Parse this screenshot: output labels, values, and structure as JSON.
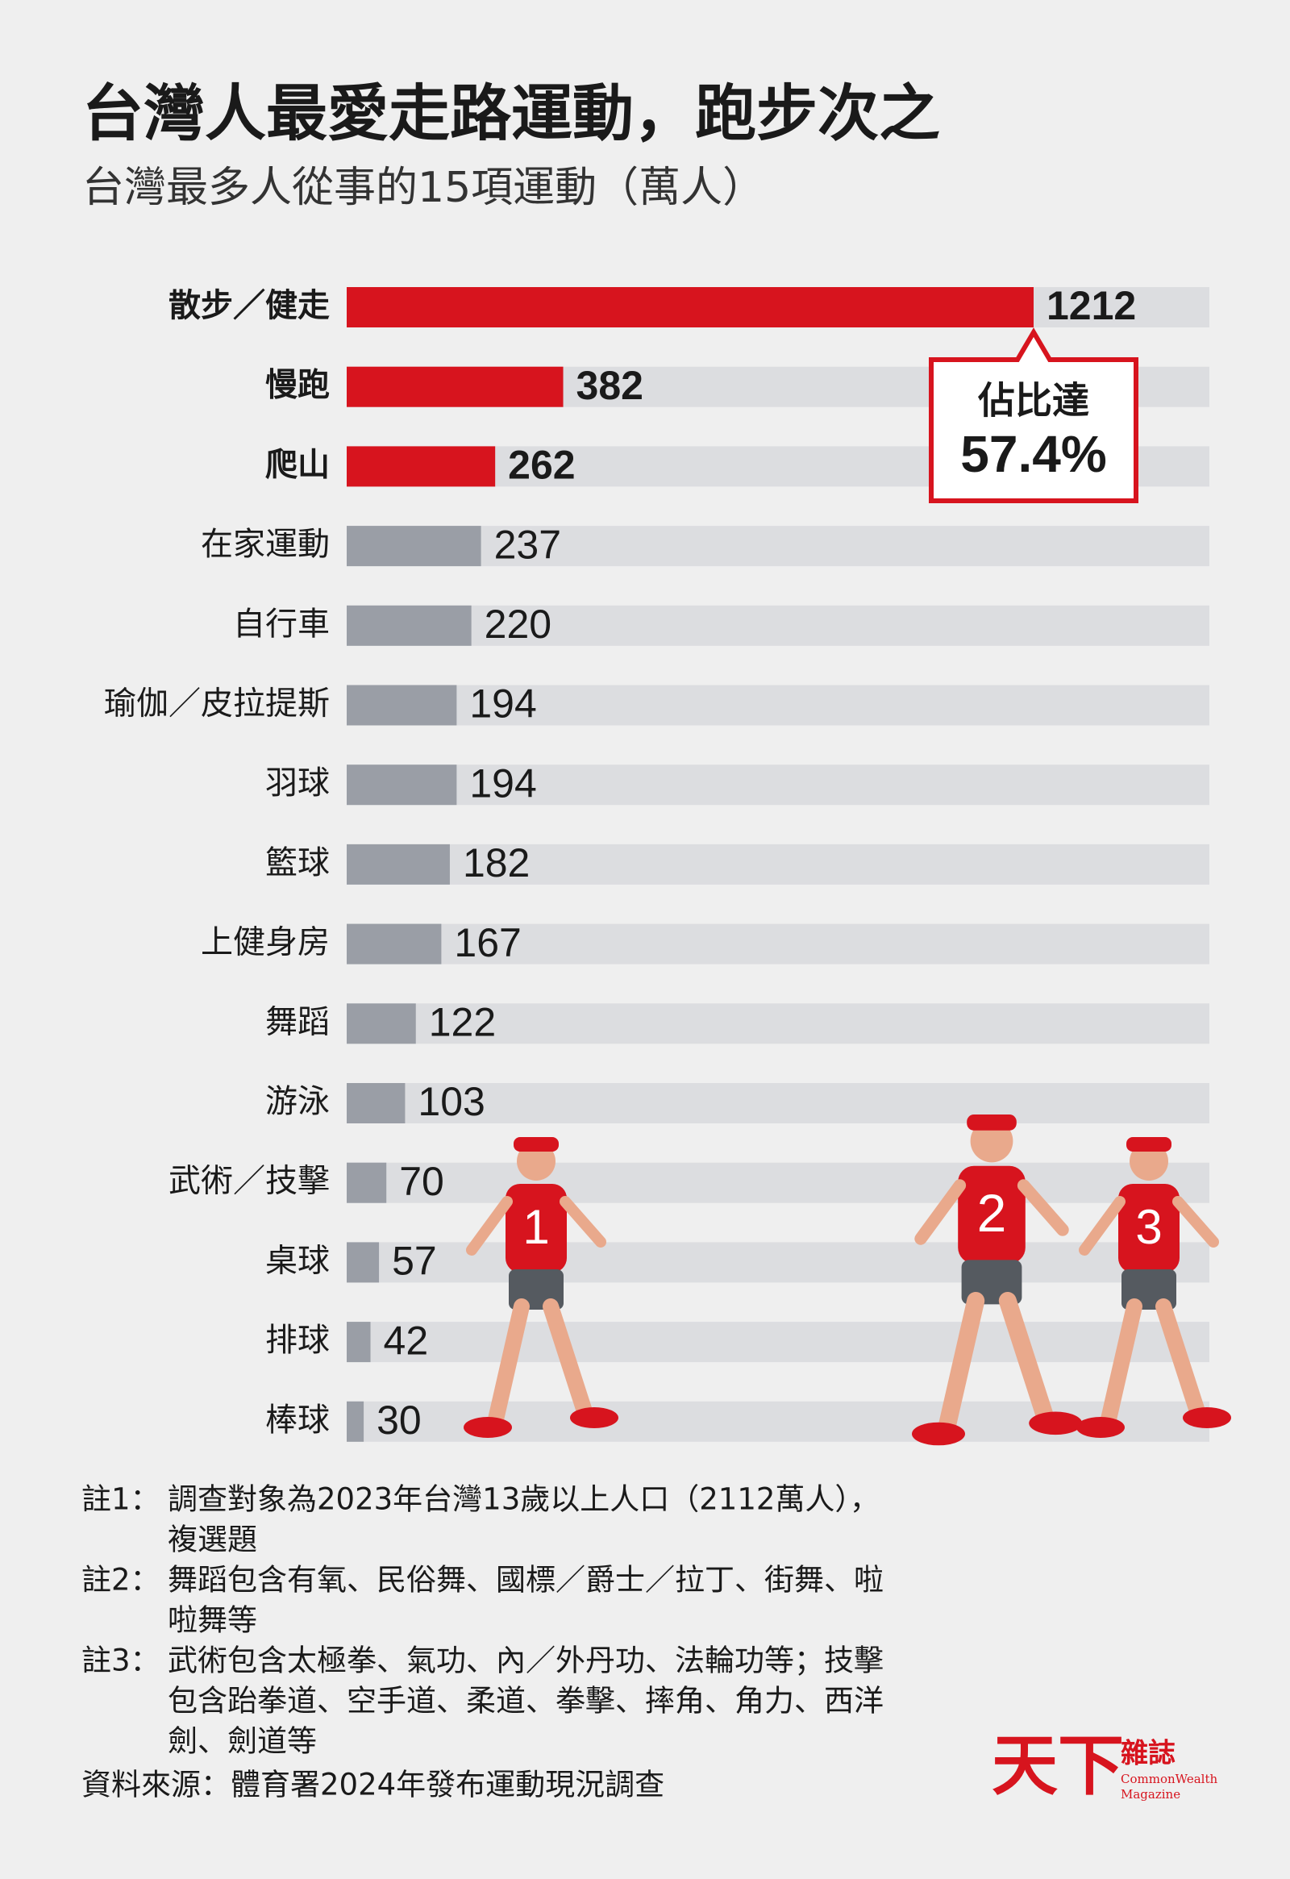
{
  "chart_data": {
    "type": "bar",
    "orientation": "horizontal",
    "title": "台灣人最愛走路運動，跑步次之",
    "subtitle": "台灣最多人從事的15項運動（萬人）",
    "categories": [
      "散步／健走",
      "慢跑",
      "爬山",
      "在家運動",
      "自行車",
      "瑜伽／皮拉提斯",
      "羽球",
      "籃球",
      "上健身房",
      "舞蹈",
      "游泳",
      "武術／技擊",
      "桌球",
      "排球",
      "棒球"
    ],
    "values": [
      1212,
      382,
      262,
      237,
      220,
      194,
      194,
      182,
      167,
      122,
      103,
      70,
      57,
      42,
      30
    ],
    "colors": [
      "#d7141e",
      "#d7141e",
      "#d7141e",
      "#9a9ea6",
      "#9a9ea6",
      "#9a9ea6",
      "#9a9ea6",
      "#9a9ea6",
      "#9a9ea6",
      "#9a9ea6",
      "#9a9ea6",
      "#9a9ea6",
      "#9a9ea6",
      "#9a9ea6",
      "#9a9ea6"
    ],
    "annotation": {
      "label": "佔比達",
      "value": 57.4,
      "value_label": "57.4%",
      "category": 0
    },
    "figures": [
      "1",
      "2",
      "3"
    ],
    "notes": [
      {
        "label": "註1：",
        "lines": [
          "調查對象為2023年台灣13歲以上人口（2112萬人），",
          "複選題"
        ]
      },
      {
        "label": "註2：",
        "lines": [
          "舞蹈包含有氧、民俗舞、國標／爵士／拉丁、街舞、啦",
          "啦舞等"
        ]
      },
      {
        "label": "註3：",
        "lines": [
          "武術包含太極拳、氣功、內／外丹功、法輪功等；技擊",
          "包含跆拳道、空手道、柔道、拳擊、摔角、角力、西洋",
          "劍、劍道等"
        ]
      }
    ],
    "source": "資料來源：體育署2024年發布運動現況調查",
    "logo": {
      "name": "天下",
      "sub": "雜誌",
      "en1": "CommonWealth",
      "en2": "Magazine"
    }
  }
}
